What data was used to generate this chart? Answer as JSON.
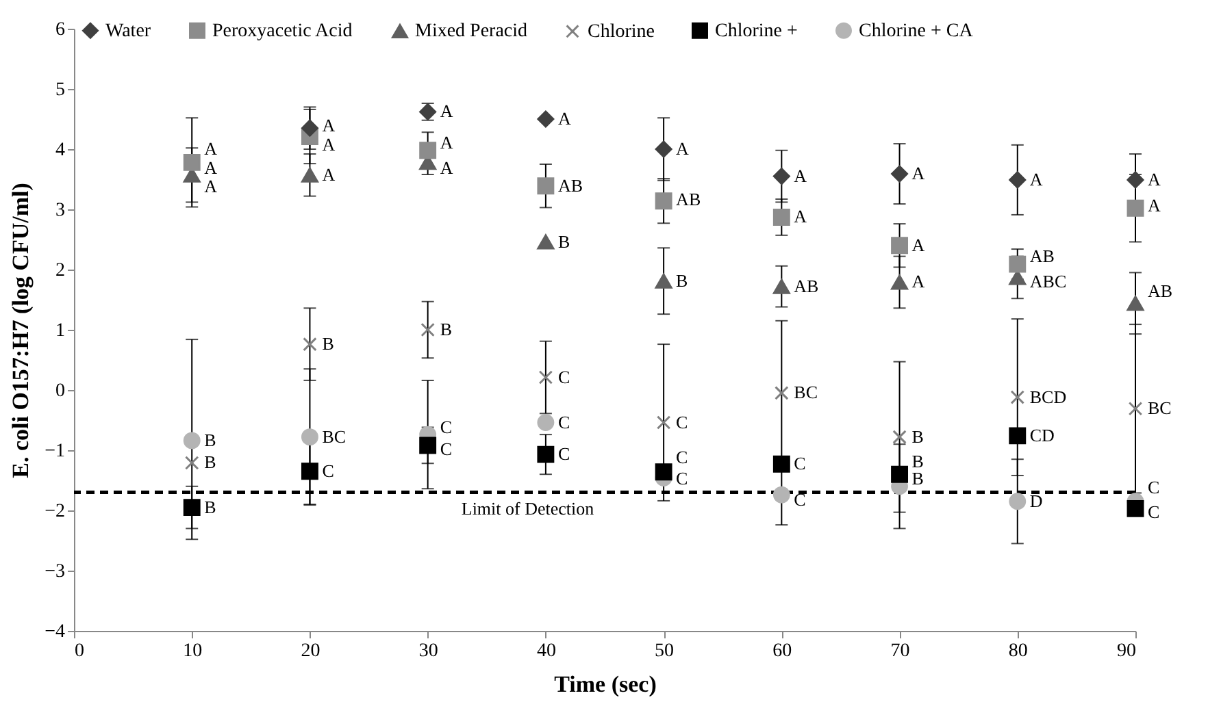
{
  "chart_data": {
    "type": "scatter",
    "xlabel": "Time (sec)",
    "ylabel": "E. coli O157:H7 (log CFU/ml)",
    "x": [
      10,
      20,
      30,
      40,
      50,
      60,
      70,
      80,
      90
    ],
    "xlim": [
      0,
      90
    ],
    "xticks": [
      0,
      10,
      20,
      30,
      40,
      50,
      60,
      70,
      80,
      90
    ],
    "ylim": [
      -4,
      6
    ],
    "yticks": [
      -4,
      -3,
      -2,
      -1,
      0,
      1,
      2,
      3,
      4,
      5,
      6
    ],
    "grid": false,
    "legend": "top",
    "series": [
      {
        "name": "Water",
        "color": "#404040",
        "marker": "diamond",
        "values": [
          null,
          4.35,
          4.62,
          4.5,
          4.0,
          3.55,
          3.59,
          3.49,
          3.49
        ],
        "errors": [
          null,
          0.35,
          0.14,
          null,
          0.52,
          0.43,
          0.5,
          0.58,
          0.43
        ]
      },
      {
        "name": "Peroxyacetic Acid",
        "color": "#8c8c8c",
        "marker": "square",
        "values": [
          3.78,
          4.21,
          3.98,
          3.39,
          3.14,
          2.87,
          2.4,
          2.09,
          3.02
        ],
        "errors": [
          0.74,
          0.45,
          0.3,
          0.36,
          0.37,
          0.3,
          0.36,
          0.25,
          0.56
        ]
      },
      {
        "name": "Mixed Peracid",
        "color": "#5f5f5f",
        "marker": "triangle",
        "values": [
          3.57,
          3.57,
          3.78,
          2.46,
          1.81,
          1.72,
          1.79,
          1.87,
          1.44
        ],
        "errors": [
          0.45,
          0.35,
          0.2,
          null,
          0.55,
          0.34,
          0.43,
          0.35,
          0.51
        ]
      },
      {
        "name": "Chlorine",
        "color": "#808080",
        "marker": "cross",
        "values": [
          -1.21,
          0.76,
          1.0,
          0.21,
          -0.54,
          -0.05,
          -0.78,
          -0.12,
          -0.31
        ],
        "errors": [
          [
            -2.48,
            0.84
          ],
          0.6,
          0.47,
          0.6,
          1.3,
          1.2,
          1.25,
          1.3,
          1.4
        ]
      },
      {
        "name": "Chlorine +",
        "color": "#000000",
        "marker": "square",
        "values": [
          -1.95,
          -1.35,
          -0.92,
          -1.07,
          -1.36,
          -1.23,
          -1.4,
          -0.76,
          -1.97
        ],
        "errors": [
          0.35,
          0.55,
          0.3,
          0.33,
          null,
          null,
          null,
          null,
          null
        ]
      },
      {
        "name": "Chlorine + CA",
        "color": "#b4b4b4",
        "marker": "circle",
        "values": [
          -0.84,
          -0.78,
          -0.74,
          -0.54,
          -1.46,
          -1.74,
          -1.6,
          -1.85,
          -1.85
        ],
        "errors": [
          null,
          1.13,
          0.9,
          null,
          null,
          0.5,
          0.7,
          0.7,
          null
        ]
      }
    ],
    "ref_lines": [
      {
        "axis": "y",
        "value": -1.7,
        "label": "Limit of Detection",
        "line_style": "dashed",
        "color": "#000000"
      }
    ],
    "annotations": [
      {
        "text": "A",
        "x": 10,
        "y": 4.0
      },
      {
        "text": "A",
        "x": 10,
        "y": 3.68
      },
      {
        "text": "A",
        "x": 10,
        "y": 3.37
      },
      {
        "text": "B",
        "x": 10,
        "y": -0.84
      },
      {
        "text": "B",
        "x": 10,
        "y": -1.21
      },
      {
        "text": "B",
        "x": 10,
        "y": -1.95
      },
      {
        "text": "A",
        "x": 20,
        "y": 4.39
      },
      {
        "text": "A",
        "x": 20,
        "y": 4.07
      },
      {
        "text": "A",
        "x": 20,
        "y": 3.57
      },
      {
        "text": "B",
        "x": 20,
        "y": 0.76
      },
      {
        "text": "BC",
        "x": 20,
        "y": -0.78
      },
      {
        "text": "C",
        "x": 20,
        "y": -1.35
      },
      {
        "text": "A",
        "x": 30,
        "y": 4.62
      },
      {
        "text": "A",
        "x": 30,
        "y": 4.1
      },
      {
        "text": "A",
        "x": 30,
        "y": 3.68
      },
      {
        "text": "B",
        "x": 30,
        "y": 1.0
      },
      {
        "text": "C",
        "x": 30,
        "y": -0.62
      },
      {
        "text": "C",
        "x": 30,
        "y": -0.99
      },
      {
        "text": "A",
        "x": 40,
        "y": 4.5
      },
      {
        "text": "AB",
        "x": 40,
        "y": 3.39
      },
      {
        "text": "B",
        "x": 40,
        "y": 2.46
      },
      {
        "text": "C",
        "x": 40,
        "y": 0.21
      },
      {
        "text": "C",
        "x": 40,
        "y": -0.54
      },
      {
        "text": "C",
        "x": 40,
        "y": -1.07
      },
      {
        "text": "A",
        "x": 50,
        "y": 4.0
      },
      {
        "text": "AB",
        "x": 50,
        "y": 3.16
      },
      {
        "text": "B",
        "x": 50,
        "y": 1.81
      },
      {
        "text": "C",
        "x": 50,
        "y": -0.54
      },
      {
        "text": "C",
        "x": 50,
        "y": -1.13
      },
      {
        "text": "C",
        "x": 50,
        "y": -1.48
      },
      {
        "text": "A",
        "x": 60,
        "y": 3.55
      },
      {
        "text": "A",
        "x": 60,
        "y": 2.87
      },
      {
        "text": "AB",
        "x": 60,
        "y": 1.72
      },
      {
        "text": "BC",
        "x": 60,
        "y": -0.05
      },
      {
        "text": "C",
        "x": 60,
        "y": -1.23
      },
      {
        "text": "C",
        "x": 60,
        "y": -1.83
      },
      {
        "text": "A",
        "x": 70,
        "y": 3.59
      },
      {
        "text": "A",
        "x": 70,
        "y": 2.4
      },
      {
        "text": "A",
        "x": 70,
        "y": 1.79
      },
      {
        "text": "B",
        "x": 70,
        "y": -0.78
      },
      {
        "text": "B",
        "x": 70,
        "y": -1.19
      },
      {
        "text": "B",
        "x": 70,
        "y": -1.48
      },
      {
        "text": "A",
        "x": 80,
        "y": 3.49
      },
      {
        "text": "AB",
        "x": 80,
        "y": 2.22
      },
      {
        "text": "ABC",
        "x": 80,
        "y": 1.79
      },
      {
        "text": "BCD",
        "x": 80,
        "y": -0.12
      },
      {
        "text": "CD",
        "x": 80,
        "y": -0.76
      },
      {
        "text": "D",
        "x": 80,
        "y": -1.85
      },
      {
        "text": "A",
        "x": 90,
        "y": 3.49
      },
      {
        "text": "A",
        "x": 90,
        "y": 3.06
      },
      {
        "text": "AB",
        "x": 90,
        "y": 1.64
      },
      {
        "text": "BC",
        "x": 90,
        "y": -0.31
      },
      {
        "text": "C",
        "x": 90,
        "y": -1.62
      },
      {
        "text": "C",
        "x": 90,
        "y": -2.03
      }
    ]
  }
}
